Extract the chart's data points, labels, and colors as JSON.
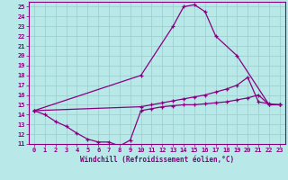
{
  "xlabel": "Windchill (Refroidissement éolien,°C)",
  "bg_color": "#b8e8e8",
  "grid_color": "#99cccc",
  "line_color": "#880080",
  "xlim": [
    -0.5,
    23.5
  ],
  "ylim": [
    11,
    25.5
  ],
  "xticks": [
    0,
    1,
    2,
    3,
    4,
    5,
    6,
    7,
    8,
    9,
    10,
    11,
    12,
    13,
    14,
    15,
    16,
    17,
    18,
    19,
    20,
    21,
    22,
    23
  ],
  "yticks": [
    11,
    12,
    13,
    14,
    15,
    16,
    17,
    18,
    19,
    20,
    21,
    22,
    23,
    24,
    25
  ],
  "line1_x": [
    0,
    1,
    2,
    3,
    4,
    5,
    6,
    7,
    8,
    9,
    10,
    11,
    12,
    13,
    14,
    15,
    16,
    17,
    18,
    19,
    20,
    21,
    22,
    23
  ],
  "line1_y": [
    14.4,
    14.0,
    13.3,
    12.8,
    12.1,
    11.5,
    11.2,
    11.2,
    10.8,
    11.4,
    14.4,
    14.6,
    14.8,
    14.9,
    15.0,
    15.0,
    15.1,
    15.2,
    15.3,
    15.5,
    15.7,
    16.0,
    15.0,
    15.0
  ],
  "line2_x": [
    0,
    10,
    13,
    14,
    15,
    16,
    17,
    19,
    22,
    23
  ],
  "line2_y": [
    14.4,
    18.0,
    23.0,
    25.0,
    25.2,
    24.5,
    22.0,
    20.0,
    15.0,
    15.0
  ],
  "line3_x": [
    0,
    10,
    11,
    12,
    13,
    14,
    15,
    16,
    17,
    18,
    19,
    20,
    21,
    22,
    23
  ],
  "line3_y": [
    14.4,
    14.8,
    15.0,
    15.2,
    15.4,
    15.6,
    15.8,
    16.0,
    16.3,
    16.6,
    17.0,
    17.8,
    15.3,
    15.1,
    15.0
  ]
}
